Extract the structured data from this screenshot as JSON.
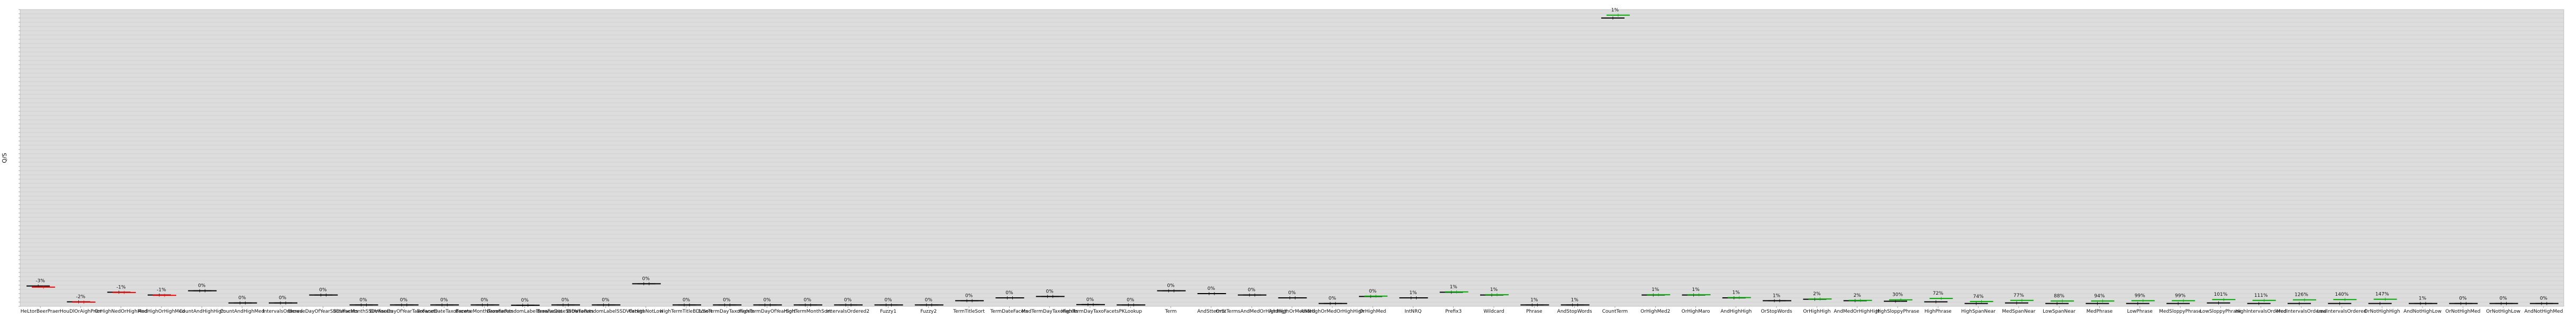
{
  "chart_data": {
    "type": "scatter",
    "title": "",
    "xlabel": "",
    "ylabel": "Q/S",
    "grid": true,
    "background": "#dddddd",
    "colors": {
      "baseline": "#000000",
      "low": "#ff0000",
      "high": "#00aa00"
    },
    "ylim": [
      0,
      10.5
    ],
    "categories": [
      "HeLtorBeerPraer",
      "HouDlOrAighPrior",
      "OrHighNedOrHighMed",
      "AndHighOrHighMed",
      "CountAndHighHigh",
      "CountAndHighMed",
      "IntervalsOrdered",
      "BrowseDayOfYearSSDVFacets",
      "BrowseMonthSSDVFacets",
      "BrowseDayOfYearTaxoFacets",
      "BrowseDateTaxoFacets",
      "BrowseMonthTaxoFacets",
      "BrowseRandomLabelTaxoFacets",
      "BrowseDateSSDVFacets",
      "BrowseRandomLabelSSDVFacets",
      "OrHighNotLow",
      "HighTermTitleBDVSort",
      "LowTermDayTaxoFacets",
      "HighTermDayOfYearSort",
      "HighTermMonthSort",
      "IntervalsOrdered2",
      "Fuzzy1",
      "Fuzzy2",
      "TermTitleSort",
      "TermDateFacets",
      "MedTermDayTaxoFacets",
      "HighTermDayTaxoFacets",
      "PKLookup",
      "Term",
      "AndStterms",
      "OrStTermsAndMedOrHighHigh",
      "AndHighOrMedMed",
      "AndHighOrMedOrHighHigh",
      "OrHighMed",
      "IntNRQ",
      "Prefix3",
      "Wildcard",
      "Phrase",
      "AndStopWords",
      "CountTerm",
      "OrHighMed2",
      "OrHighMaro",
      "AndHighHigh",
      "OrStopWords",
      "OrHighHigh",
      "AndMedOrHighHigh",
      "HighSloppyPhrase",
      "HighPhrase",
      "HighSpanNear",
      "MedSpanNear",
      "LowSpanNear",
      "MedPhrase",
      "LowPhrase",
      "MedSloppyPhrase",
      "LowSloppyPhrase",
      "HighIntervalsOrdered",
      "MedIntervalsOrdered",
      "LowIntervalsOrdered",
      "OrNotHighHigh",
      "AndNotHighLow",
      "OrNotHighMed",
      "OrNotHighLow",
      "AndNotHighMed"
    ],
    "pct_labels": [
      "-3%",
      "-2%",
      "-1%",
      "-1%",
      "0%",
      "0%",
      "0%",
      "0%",
      "0%",
      "0%",
      "0%",
      "0%",
      "0%",
      "0%",
      "0%",
      "0%",
      "0%",
      "0%",
      "0%",
      "0%",
      "0%",
      "0%",
      "0%",
      "0%",
      "0%",
      "0%",
      "0%",
      "0%",
      "0%",
      "0%",
      "0%",
      "0%",
      "0%",
      "0%",
      "1%",
      "1%",
      "1%",
      "1%",
      "1%",
      "1%",
      "1%",
      "1%",
      "1%",
      "1%",
      "2%",
      "2%",
      "30%",
      "72%",
      "74%",
      "77%",
      "88%",
      "94%",
      "99%",
      "99%",
      "101%",
      "111%",
      "126%",
      "140%",
      "147%",
      "1%",
      "0%",
      "0%",
      "0%"
    ],
    "series": [
      {
        "name": "baseline",
        "values": [
          0.72,
          0.16,
          0.5,
          0.4,
          0.55,
          0.12,
          0.12,
          0.4,
          0.05,
          0.05,
          0.05,
          0.05,
          0.04,
          0.05,
          0.05,
          0.8,
          0.05,
          0.05,
          0.05,
          0.05,
          0.05,
          0.05,
          0.05,
          0.2,
          0.3,
          0.35,
          0.06,
          0.05,
          0.55,
          0.45,
          0.4,
          0.3,
          0.1,
          0.35,
          0.3,
          0.5,
          0.4,
          0.05,
          0.05,
          10.2,
          0.4,
          0.4,
          0.3,
          0.2,
          0.25,
          0.2,
          0.18,
          0.16,
          0.1,
          0.12,
          0.1,
          0.1,
          0.1,
          0.1,
          0.12,
          0.1,
          0.1,
          0.1,
          0.1,
          0.1,
          0.1,
          0.1,
          0.1
        ]
      },
      {
        "name": "candidate",
        "values": [
          0.68,
          0.15,
          0.49,
          0.39,
          0.55,
          0.12,
          0.12,
          0.4,
          0.05,
          0.05,
          0.05,
          0.05,
          0.04,
          0.05,
          0.05,
          0.8,
          0.05,
          0.05,
          0.05,
          0.05,
          0.05,
          0.05,
          0.05,
          0.2,
          0.3,
          0.35,
          0.06,
          0.05,
          0.55,
          0.45,
          0.4,
          0.3,
          0.1,
          0.36,
          0.3,
          0.51,
          0.41,
          0.05,
          0.05,
          10.3,
          0.41,
          0.41,
          0.31,
          0.2,
          0.26,
          0.21,
          0.23,
          0.28,
          0.17,
          0.21,
          0.19,
          0.19,
          0.2,
          0.2,
          0.24,
          0.21,
          0.23,
          0.24,
          0.25,
          0.1,
          0.1,
          0.1,
          0.1
        ]
      }
    ]
  }
}
